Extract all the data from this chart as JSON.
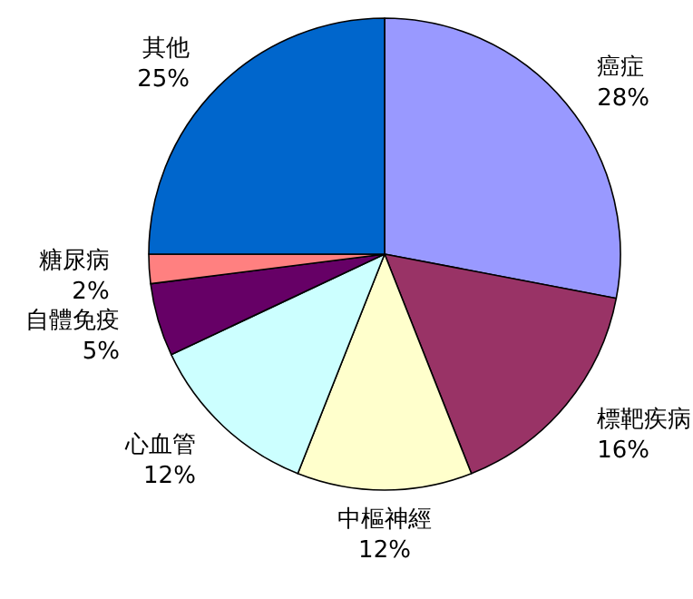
{
  "chart_data": {
    "type": "pie",
    "categories": [
      "癌症",
      "標靶疾病",
      "中樞神經",
      "心血管",
      "自體免疫",
      "糖尿病",
      "其他"
    ],
    "values": [
      28,
      16,
      12,
      12,
      5,
      2,
      25
    ],
    "colors": [
      "#9999ff",
      "#993366",
      "#ffffcc",
      "#ccffff",
      "#660066",
      "#ff8080",
      "#0066cc"
    ],
    "value_labels": [
      "28%",
      "16%",
      "12%",
      "12%",
      "5%",
      "2%",
      "25%"
    ]
  }
}
